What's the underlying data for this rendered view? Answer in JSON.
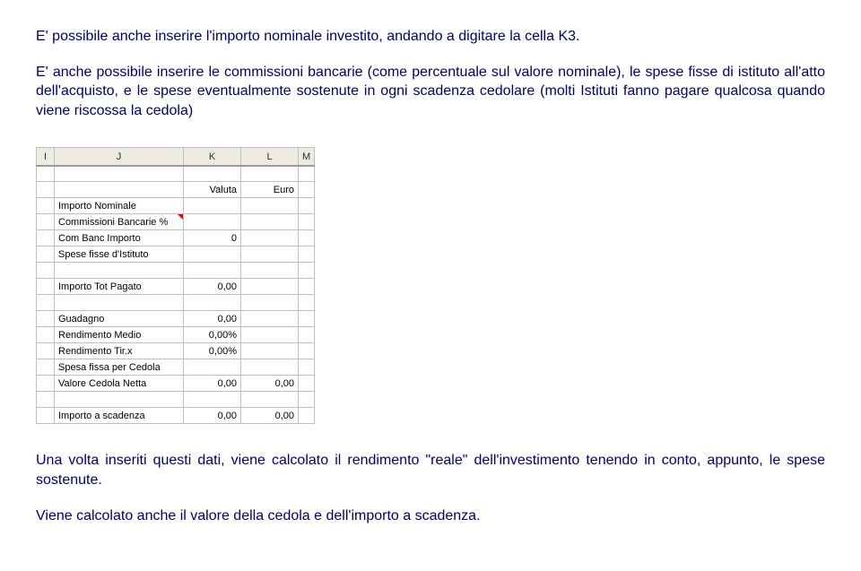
{
  "paragraphs": {
    "p1": "E' possibile anche inserire l'importo nominale investito, andando a digitare la cella K3.",
    "p2": "E' anche possibile inserire le commissioni bancarie (come percentuale sul valore nominale), le spese fisse di istituto all'atto dell'acquisto, e le spese eventualmente sostenute in ogni scadenza cedolare (molti Istituti fanno pagare qualcosa quando viene riscossa la cedola)",
    "p3": "Una volta inseriti questi dati, viene calcolato il rendimento \"reale\" dell'investimento tenendo in conto, appunto, le spese sostenute.",
    "p4": "Viene calcolato anche il valore della cedola e dell'importo a scadenza."
  },
  "sheet": {
    "headers": {
      "i": "I",
      "j": "J",
      "k": "K",
      "l": "L",
      "m": "M"
    },
    "rows": [
      {
        "label": "",
        "k": "Valuta",
        "l": "Euro",
        "bold": false,
        "marker": false,
        "kAlign": "right",
        "lAlign": "right"
      },
      {
        "label": "Importo Nominale",
        "k": "",
        "l": "",
        "bold": false,
        "marker": false,
        "kAlign": "right",
        "lAlign": "right"
      },
      {
        "label": "Commissioni Bancarie %",
        "k": "",
        "l": "",
        "bold": false,
        "marker": true,
        "kAlign": "right",
        "lAlign": "right"
      },
      {
        "label": "Com Banc Importo",
        "k": "0",
        "l": "",
        "bold": false,
        "marker": false,
        "kAlign": "right",
        "lAlign": "right"
      },
      {
        "label": "Spese fisse d'Istituto",
        "k": "",
        "l": "",
        "bold": false,
        "marker": false,
        "kAlign": "right",
        "lAlign": "right"
      },
      {
        "label": "",
        "k": "",
        "l": "",
        "bold": false,
        "marker": false,
        "kAlign": "right",
        "lAlign": "right"
      },
      {
        "label": "Importo Tot Pagato",
        "k": "0,00",
        "l": "",
        "bold": true,
        "marker": false,
        "kAlign": "right",
        "lAlign": "right"
      },
      {
        "label": "",
        "k": "",
        "l": "",
        "bold": false,
        "marker": false,
        "kAlign": "right",
        "lAlign": "right"
      },
      {
        "label": "Guadagno",
        "k": "0,00",
        "l": "",
        "bold": false,
        "marker": false,
        "kAlign": "right",
        "lAlign": "right"
      },
      {
        "label": "Rendimento Medio",
        "k": "0,00%",
        "l": "",
        "bold": false,
        "marker": false,
        "kAlign": "right",
        "lAlign": "right"
      },
      {
        "label": "Rendimento Tir.x",
        "k": "0,00%",
        "l": "",
        "bold": false,
        "marker": false,
        "kAlign": "right",
        "lAlign": "right"
      },
      {
        "label": "Spesa fissa per Cedola",
        "k": "",
        "l": "",
        "bold": false,
        "marker": false,
        "kAlign": "right",
        "lAlign": "right"
      },
      {
        "label": "Valore Cedola Netta",
        "k": "0,00",
        "l": "0,00",
        "bold": false,
        "marker": false,
        "kAlign": "right",
        "lAlign": "right"
      },
      {
        "label": "",
        "k": "",
        "l": "",
        "bold": false,
        "marker": false,
        "kAlign": "right",
        "lAlign": "right"
      },
      {
        "label": "Importo a scadenza",
        "k": "0,00",
        "l": "0,00",
        "bold": true,
        "marker": false,
        "kAlign": "right",
        "lAlign": "right"
      }
    ]
  }
}
